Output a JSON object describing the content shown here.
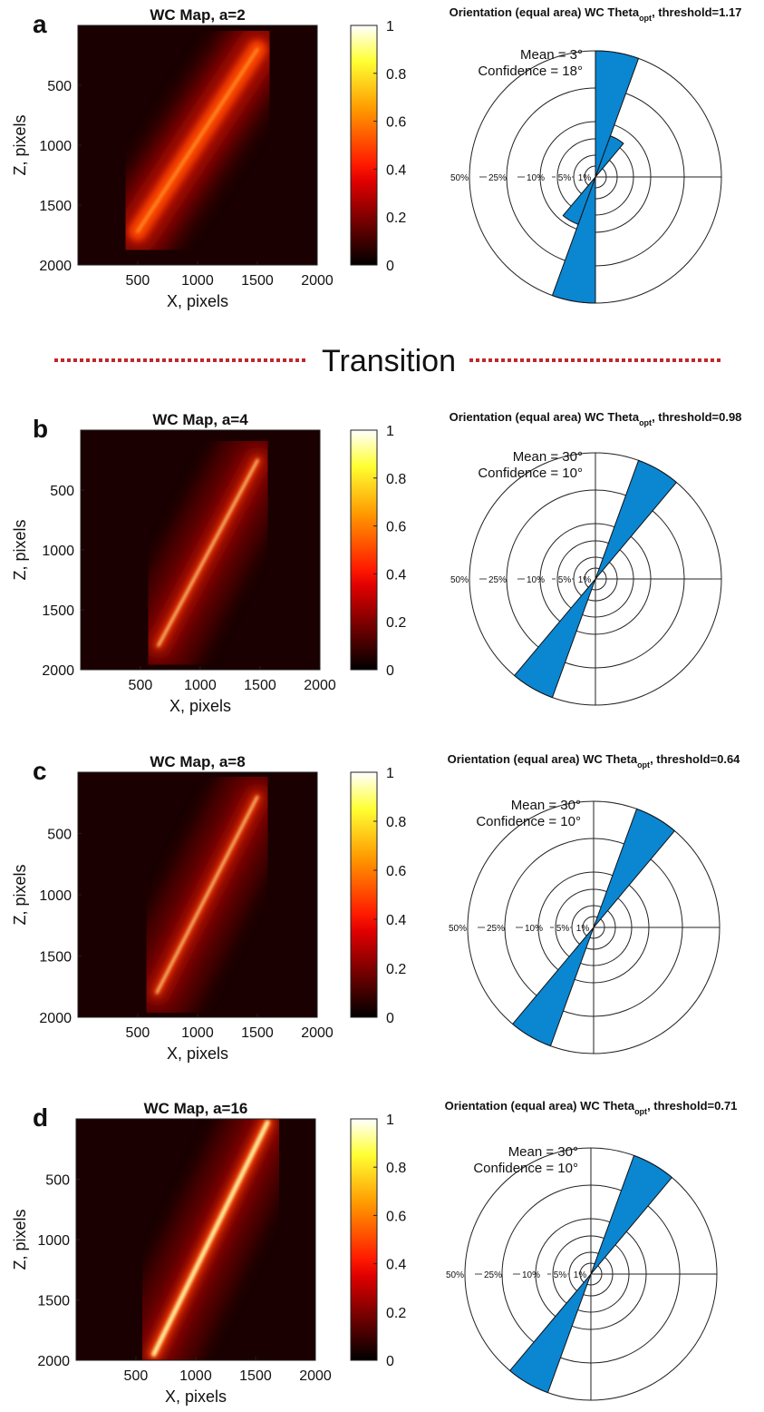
{
  "transition_label": "Transition",
  "chart_data": [
    {
      "panel": "a",
      "type": "heatmap",
      "title": "WC Map, a=2",
      "xlabel": "X, pixels",
      "ylabel": "Z, pixels",
      "xticks": [
        500,
        1000,
        1500,
        2000
      ],
      "yticks": [
        500,
        1000,
        1500,
        2000
      ],
      "xlim": [
        1,
        2000
      ],
      "ylim": [
        1,
        2000
      ],
      "colorbar": {
        "ticks": [
          "0",
          "0.2",
          "0.4",
          "0.6",
          "0.8",
          "1"
        ],
        "range": [
          0,
          1
        ],
        "colormap": "hot"
      },
      "ridge": {
        "start": [
          500,
          1720
        ],
        "end": [
          1500,
          200
        ]
      },
      "polar": {
        "type": "polar-histogram",
        "title_parts": [
          "Orientation (equal area) WC Theta",
          "opt",
          ", threshold=1.17"
        ],
        "mean_label": "Mean = 3°",
        "confidence_label": "Confidence = 18°",
        "ring_labels": [
          "50%",
          "25%",
          "10%",
          "5%",
          "1%"
        ],
        "bins": [
          {
            "from": 0,
            "to": 20,
            "percent": 50
          },
          {
            "from": 20,
            "to": 40,
            "percent": 6
          },
          {
            "from": 180,
            "to": 200,
            "percent": 50
          },
          {
            "from": 200,
            "to": 220,
            "percent": 8
          }
        ]
      }
    },
    {
      "panel": "b",
      "type": "heatmap",
      "title": "WC Map, a=4",
      "xlabel": "X, pixels",
      "ylabel": "Z, pixels",
      "xticks": [
        500,
        1000,
        1500,
        2000
      ],
      "yticks": [
        500,
        1000,
        1500,
        2000
      ],
      "xlim": [
        1,
        2000
      ],
      "ylim": [
        1,
        2000
      ],
      "colorbar": {
        "ticks": [
          "0",
          "0.2",
          "0.4",
          "0.6",
          "0.8",
          "1"
        ],
        "range": [
          0,
          1
        ],
        "colormap": "hot"
      },
      "ridge": {
        "start": [
          650,
          1800
        ],
        "end": [
          1480,
          250
        ]
      },
      "polar": {
        "type": "polar-histogram",
        "title_parts": [
          "Orientation (equal area) WC Theta",
          "opt",
          ", threshold=0.98"
        ],
        "mean_label": "Mean = 30°",
        "confidence_label": "Confidence = 10°",
        "ring_labels": [
          "50%",
          "25%",
          "10%",
          "5%",
          "1%"
        ],
        "bins": [
          {
            "from": 20,
            "to": 40,
            "percent": 50
          },
          {
            "from": 200,
            "to": 220,
            "percent": 50
          }
        ]
      }
    },
    {
      "panel": "c",
      "type": "heatmap",
      "title": "WC Map, a=8",
      "xlabel": "X, pixels",
      "ylabel": "Z, pixels",
      "xticks": [
        500,
        1000,
        1500,
        2000
      ],
      "yticks": [
        500,
        1000,
        1500,
        2000
      ],
      "xlim": [
        1,
        2000
      ],
      "ylim": [
        1,
        2000
      ],
      "colorbar": {
        "ticks": [
          "0",
          "0.2",
          "0.4",
          "0.6",
          "0.8",
          "1"
        ],
        "range": [
          0,
          1
        ],
        "colormap": "hot"
      },
      "ridge": {
        "start": [
          660,
          1800
        ],
        "end": [
          1500,
          200
        ]
      },
      "polar": {
        "type": "polar-histogram",
        "title_parts": [
          "Orientation (equal area) WC Theta",
          "opt",
          ", threshold=0.64"
        ],
        "mean_label": "Mean = 30°",
        "confidence_label": "Confidence = 10°",
        "ring_labels": [
          "50%",
          "25%",
          "10%",
          "5%",
          "1%"
        ],
        "bins": [
          {
            "from": 20,
            "to": 40,
            "percent": 50
          },
          {
            "from": 200,
            "to": 220,
            "percent": 50
          }
        ]
      }
    },
    {
      "panel": "d",
      "type": "heatmap",
      "title": "WC Map, a=16",
      "xlabel": "X, pixels",
      "ylabel": "Z, pixels",
      "xticks": [
        500,
        1000,
        1500,
        2000
      ],
      "yticks": [
        500,
        1000,
        1500,
        2000
      ],
      "xlim": [
        1,
        2000
      ],
      "ylim": [
        1,
        2000
      ],
      "colorbar": {
        "ticks": [
          "0",
          "0.2",
          "0.4",
          "0.6",
          "0.8",
          "1"
        ],
        "range": [
          0,
          1
        ],
        "colormap": "hot"
      },
      "ridge": {
        "start": [
          650,
          1950
        ],
        "end": [
          1600,
          30
        ]
      },
      "polar": {
        "type": "polar-histogram",
        "title_parts": [
          "Orientation (equal area) WC Theta",
          "opt",
          ", threshold=0.71"
        ],
        "mean_label": "Mean = 30°",
        "confidence_label": "Confidence = 10°",
        "ring_labels": [
          "50%",
          "25%",
          "10%",
          "5%",
          "1%"
        ],
        "bins": [
          {
            "from": 20,
            "to": 40,
            "percent": 50
          },
          {
            "from": 200,
            "to": 220,
            "percent": 50
          }
        ]
      }
    }
  ]
}
